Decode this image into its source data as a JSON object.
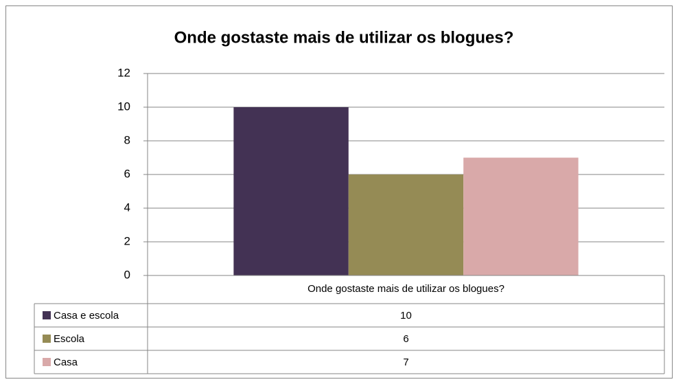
{
  "chart_data": {
    "type": "bar",
    "title": "Onde gostaste mais de utilizar os blogues?",
    "categories": [
      "Onde gostaste mais de utilizar os blogues?"
    ],
    "series": [
      {
        "name": "Casa e escola",
        "color": "#433254",
        "values": [
          10
        ]
      },
      {
        "name": "Escola",
        "color": "#958b55",
        "values": [
          6
        ]
      },
      {
        "name": "Casa",
        "color": "#d9a9a9",
        "values": [
          7
        ]
      }
    ],
    "ylim": [
      0,
      12
    ],
    "yticks": [
      0,
      2,
      4,
      6,
      8,
      10,
      12
    ],
    "grid": true,
    "data_table": true
  }
}
